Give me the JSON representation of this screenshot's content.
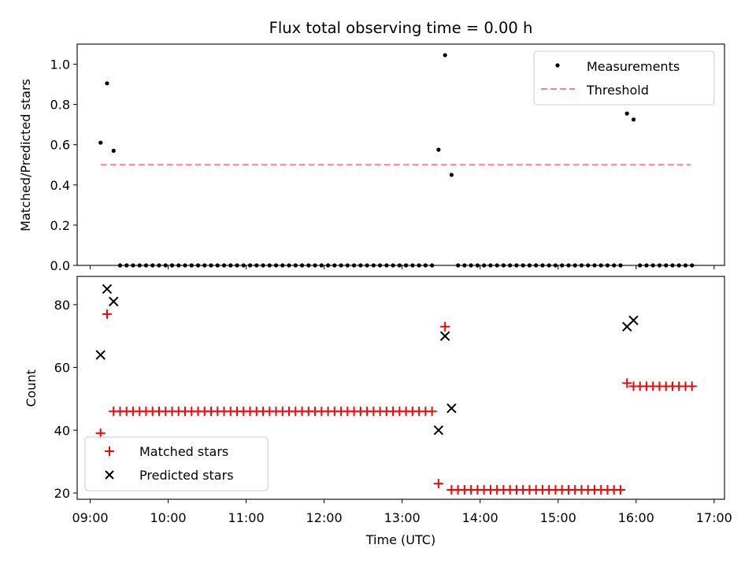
{
  "chart_data": [
    {
      "type": "scatter",
      "title": "Flux total observing time = 0.00 h",
      "ylabel": "Matched/Predicted stars",
      "ylim": [
        0,
        1.1
      ],
      "yticks": [
        "0.0",
        "0.2",
        "0.4",
        "0.6",
        "0.8",
        "1.0"
      ],
      "grid": false,
      "legend": "top-right",
      "threshold": {
        "name": "Threshold",
        "value": 0.5,
        "x_start": "09:08",
        "x_end": "16:42",
        "color": "#ff8080"
      },
      "series": [
        {
          "name": "Measurements",
          "color": "#000000",
          "points": [
            [
              "09:08",
              0.61
            ],
            [
              "09:13",
              0.905
            ],
            [
              "09:18",
              0.57
            ],
            [
              "09:23",
              0
            ],
            [
              "13:28",
              0.575
            ],
            [
              "13:33",
              1.045
            ],
            [
              "13:38",
              0.45
            ],
            [
              "15:53",
              0.755
            ],
            [
              "15:58",
              0.725
            ]
          ],
          "zero_runs": [
            {
              "from": "09:23",
              "to": "13:23",
              "step_min": 5
            },
            {
              "from": "13:43",
              "to": "15:48",
              "step_min": 5
            },
            {
              "from": "16:03",
              "to": "16:43",
              "step_min": 5
            }
          ]
        }
      ]
    },
    {
      "type": "scatter",
      "xlabel": "Time (UTC)",
      "ylabel": "Count",
      "ylim": [
        18,
        89
      ],
      "yticks": [
        "20",
        "40",
        "60",
        "80"
      ],
      "xticks": [
        "09:00",
        "10:00",
        "11:00",
        "12:00",
        "13:00",
        "14:00",
        "15:00",
        "16:00",
        "17:00"
      ],
      "xlim": [
        "08:50",
        "17:08"
      ],
      "grid": false,
      "legend": "bottom-left",
      "series": [
        {
          "name": "Matched stars",
          "color": "#ff0000",
          "marker": "plus",
          "points": [
            [
              "09:08",
              39
            ],
            [
              "09:13",
              77
            ],
            [
              "13:28",
              23
            ],
            [
              "13:33",
              73
            ],
            [
              "15:53",
              55
            ]
          ],
          "constant_runs": [
            {
              "from": "09:18",
              "to": "13:23",
              "step_min": 5,
              "value": 46
            },
            {
              "from": "13:38",
              "to": "15:48",
              "step_min": 5,
              "value": 21
            },
            {
              "from": "15:58",
              "to": "16:43",
              "step_min": 5,
              "value": 54
            }
          ]
        },
        {
          "name": "Predicted stars",
          "color": "#000000",
          "marker": "x",
          "points": [
            [
              "09:08",
              64
            ],
            [
              "09:13",
              85
            ],
            [
              "09:18",
              81
            ],
            [
              "13:28",
              40
            ],
            [
              "13:33",
              70
            ],
            [
              "13:38",
              47
            ],
            [
              "15:53",
              73
            ],
            [
              "15:58",
              75
            ]
          ]
        }
      ]
    }
  ]
}
